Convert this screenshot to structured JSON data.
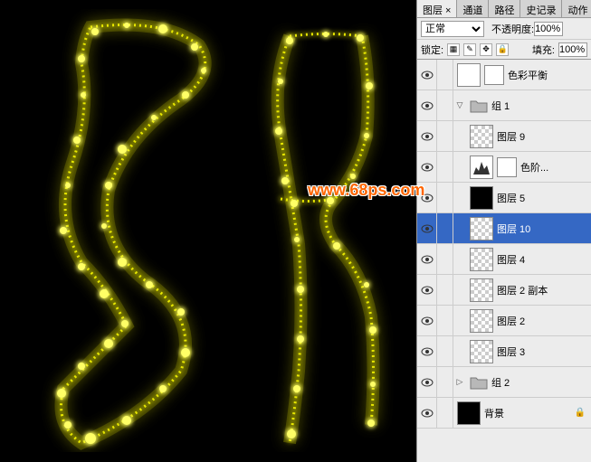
{
  "watermark": "www.68ps.com",
  "canvas": {
    "background_color": "#000000",
    "glow_color": "#e8e800",
    "glow_dim": "#888800"
  },
  "panel": {
    "tabs": [
      "图层",
      "通道",
      "路径",
      "史记录",
      "动作"
    ],
    "active_tab": 0,
    "blend_mode": "正常",
    "opacity_label": "不透明度:",
    "opacity_value": "100%",
    "lock_label": "锁定:",
    "fill_label": "填充:",
    "fill_value": "100%"
  },
  "layers": [
    {
      "type": "adjustment",
      "name": "色彩平衡",
      "indent": 0,
      "visible": true,
      "selected": false
    },
    {
      "type": "group",
      "name": "组 1",
      "indent": 0,
      "visible": true,
      "selected": false,
      "expanded": true
    },
    {
      "type": "layer",
      "name": "图层 9",
      "indent": 1,
      "visible": true,
      "selected": false,
      "thumb": "checker"
    },
    {
      "type": "adjustment",
      "name": "色阶...",
      "indent": 1,
      "visible": true,
      "selected": false,
      "thumb": "levels"
    },
    {
      "type": "layer",
      "name": "图层 5",
      "indent": 1,
      "visible": true,
      "selected": false,
      "thumb": "black"
    },
    {
      "type": "layer",
      "name": "图层 10",
      "indent": 1,
      "visible": true,
      "selected": true,
      "thumb": "checker"
    },
    {
      "type": "layer",
      "name": "图层 4",
      "indent": 1,
      "visible": true,
      "selected": false,
      "thumb": "checker"
    },
    {
      "type": "layer",
      "name": "图层 2 副本",
      "indent": 1,
      "visible": true,
      "selected": false,
      "thumb": "checker"
    },
    {
      "type": "layer",
      "name": "图层 2",
      "indent": 1,
      "visible": true,
      "selected": false,
      "thumb": "checker"
    },
    {
      "type": "layer",
      "name": "图层 3",
      "indent": 1,
      "visible": true,
      "selected": false,
      "thumb": "checker"
    },
    {
      "type": "group",
      "name": "组 2",
      "indent": 0,
      "visible": true,
      "selected": false,
      "expanded": false
    },
    {
      "type": "background",
      "name": "背景",
      "indent": 0,
      "visible": true,
      "selected": false,
      "thumb": "black"
    }
  ]
}
